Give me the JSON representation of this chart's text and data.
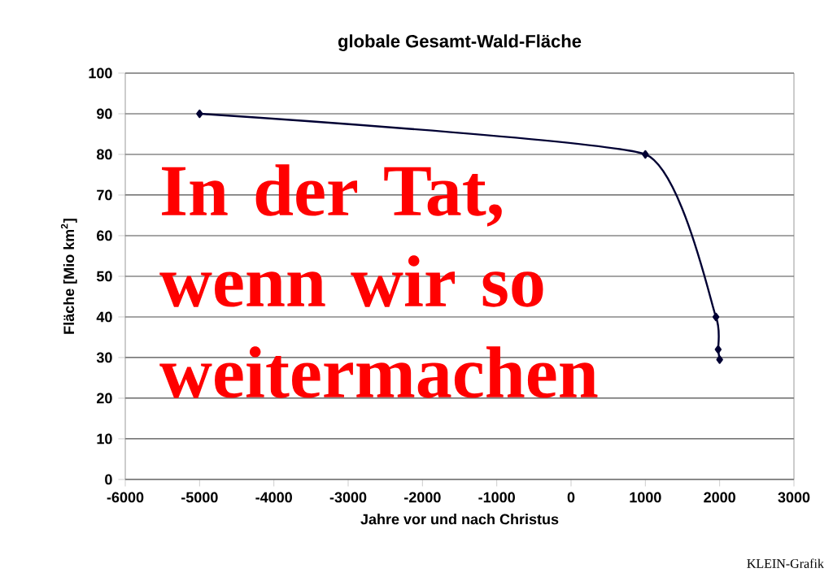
{
  "chart_data": {
    "type": "line",
    "title": "globale Gesamt-Wald-Fläche",
    "xlabel": "Jahre vor und nach Christus",
    "ylabel": "Fläche [Mio km$^{2}$]",
    "x": [
      -5000,
      1000,
      1950,
      1980,
      2000
    ],
    "series": [
      {
        "color": "#000033",
        "values": [
          90,
          80,
          40,
          32,
          29.5
        ]
      }
    ],
    "xlim": [
      -6000,
      3000
    ],
    "xticks": [
      -6000,
      -5000,
      -4000,
      -3000,
      -2000,
      -1000,
      0,
      1000,
      2000,
      3000
    ],
    "ylim": [
      0,
      100
    ],
    "yticks": [
      0,
      10,
      20,
      30,
      40,
      50,
      60,
      70,
      80,
      90,
      100
    ],
    "grid": "y",
    "marker": "diamond",
    "line_style": "solid",
    "annotations": [
      "In der Tat, wenn wir so weitermachen",
      "KLEIN-Grafik"
    ]
  }
}
